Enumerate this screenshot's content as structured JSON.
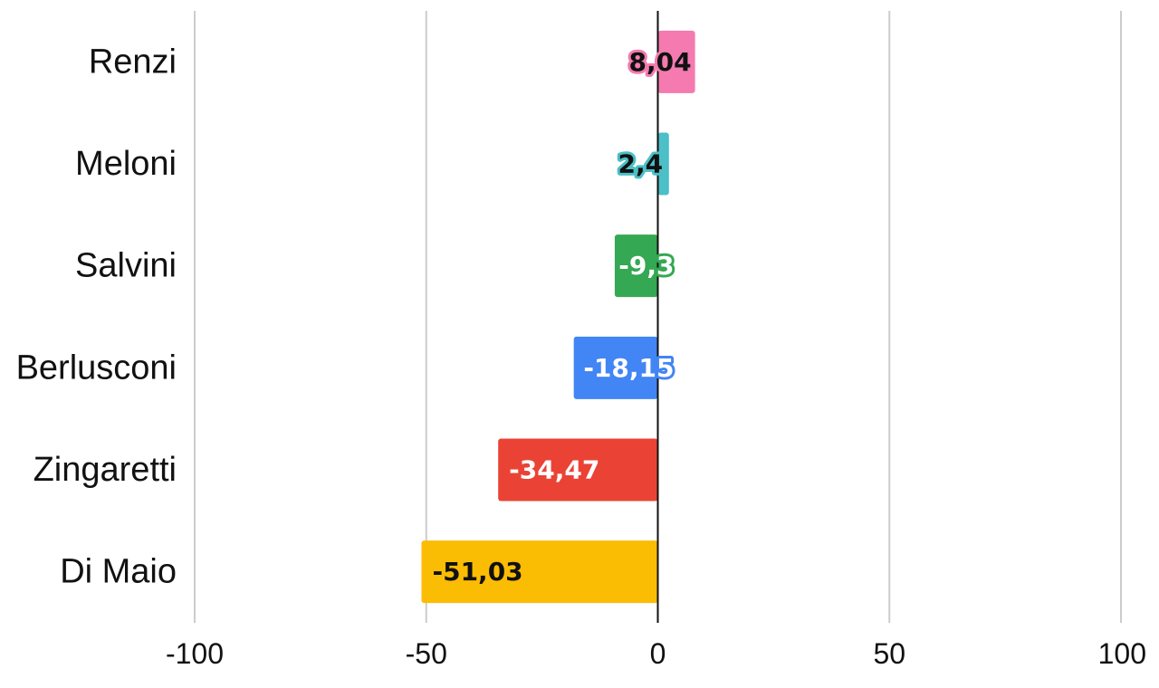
{
  "chart_data": {
    "type": "bar",
    "orientation": "horizontal",
    "categories": [
      "Renzi",
      "Meloni",
      "Salvini",
      "Berlusconi",
      "Zingaretti",
      "Di Maio"
    ],
    "values": [
      8.04,
      2.4,
      -9.3,
      -18.15,
      -34.47,
      -51.03
    ],
    "data_labels": [
      "8,04",
      "2,4",
      "-9,3",
      "-18,15",
      "-34,47",
      "-51,03"
    ],
    "colors": [
      "#f47ab0",
      "#4cbfc7",
      "#34a853",
      "#4285f4",
      "#ea4335",
      "#fbbc04"
    ],
    "label_colors": [
      "#111111",
      "#111111",
      "#ffffff",
      "#ffffff",
      "#ffffff",
      "#111111"
    ],
    "xlim": [
      -100,
      100
    ],
    "xticks": [
      -100,
      -50,
      0,
      50,
      100
    ],
    "xtick_labels": [
      "-100",
      "-50",
      "0",
      "50",
      "100"
    ],
    "title": "",
    "xlabel": "",
    "ylabel": "",
    "grid": true,
    "legend": "none"
  }
}
